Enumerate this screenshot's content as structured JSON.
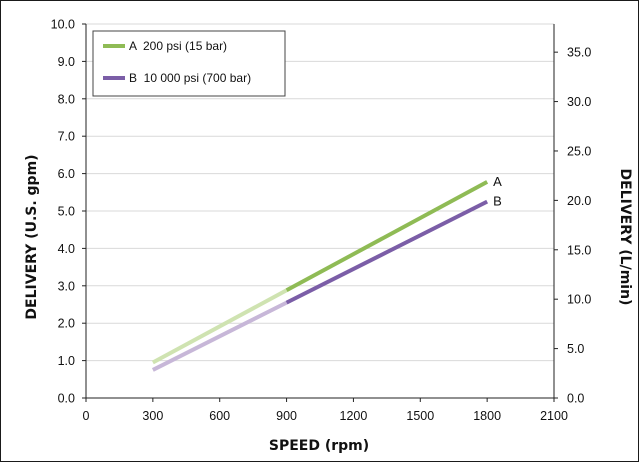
{
  "chart_data": {
    "type": "line",
    "xlabel": "SPEED (rpm)",
    "ylabel": "DELIVERY (U.S. gpm)",
    "y2label": "DELIVERY (L/min)",
    "xlim": [
      0,
      2100
    ],
    "ylim": [
      0,
      10
    ],
    "y2lim": [
      0,
      37.85
    ],
    "x_ticks": [
      "0",
      "300",
      "600",
      "900",
      "1200",
      "1500",
      "1800",
      "2100"
    ],
    "y_ticks": [
      "0.0",
      "1.0",
      "2.0",
      "3.0",
      "4.0",
      "5.0",
      "6.0",
      "7.0",
      "8.0",
      "9.0",
      "10.0"
    ],
    "y2_ticks": [
      "0.0",
      "5.0",
      "10.0",
      "15.0",
      "20.0",
      "25.0",
      "30.0",
      "35.0"
    ],
    "grid": "horizontal",
    "legend": "top-left",
    "series": [
      {
        "key": "A",
        "name": "A  200 psi (15 bar)",
        "end_label": "A",
        "color": "#8fbb55",
        "light_color": "#cfe3b1",
        "x": [
          300,
          900,
          1800
        ],
        "y": [
          0.95,
          2.88,
          5.78
        ]
      },
      {
        "key": "B",
        "name": "B  10 000 psi (700 bar)",
        "end_label": "B",
        "color": "#7b5ea7",
        "light_color": "#c7b7d8",
        "x": [
          300,
          900,
          1800
        ],
        "y": [
          0.75,
          2.55,
          5.25
        ]
      }
    ]
  }
}
